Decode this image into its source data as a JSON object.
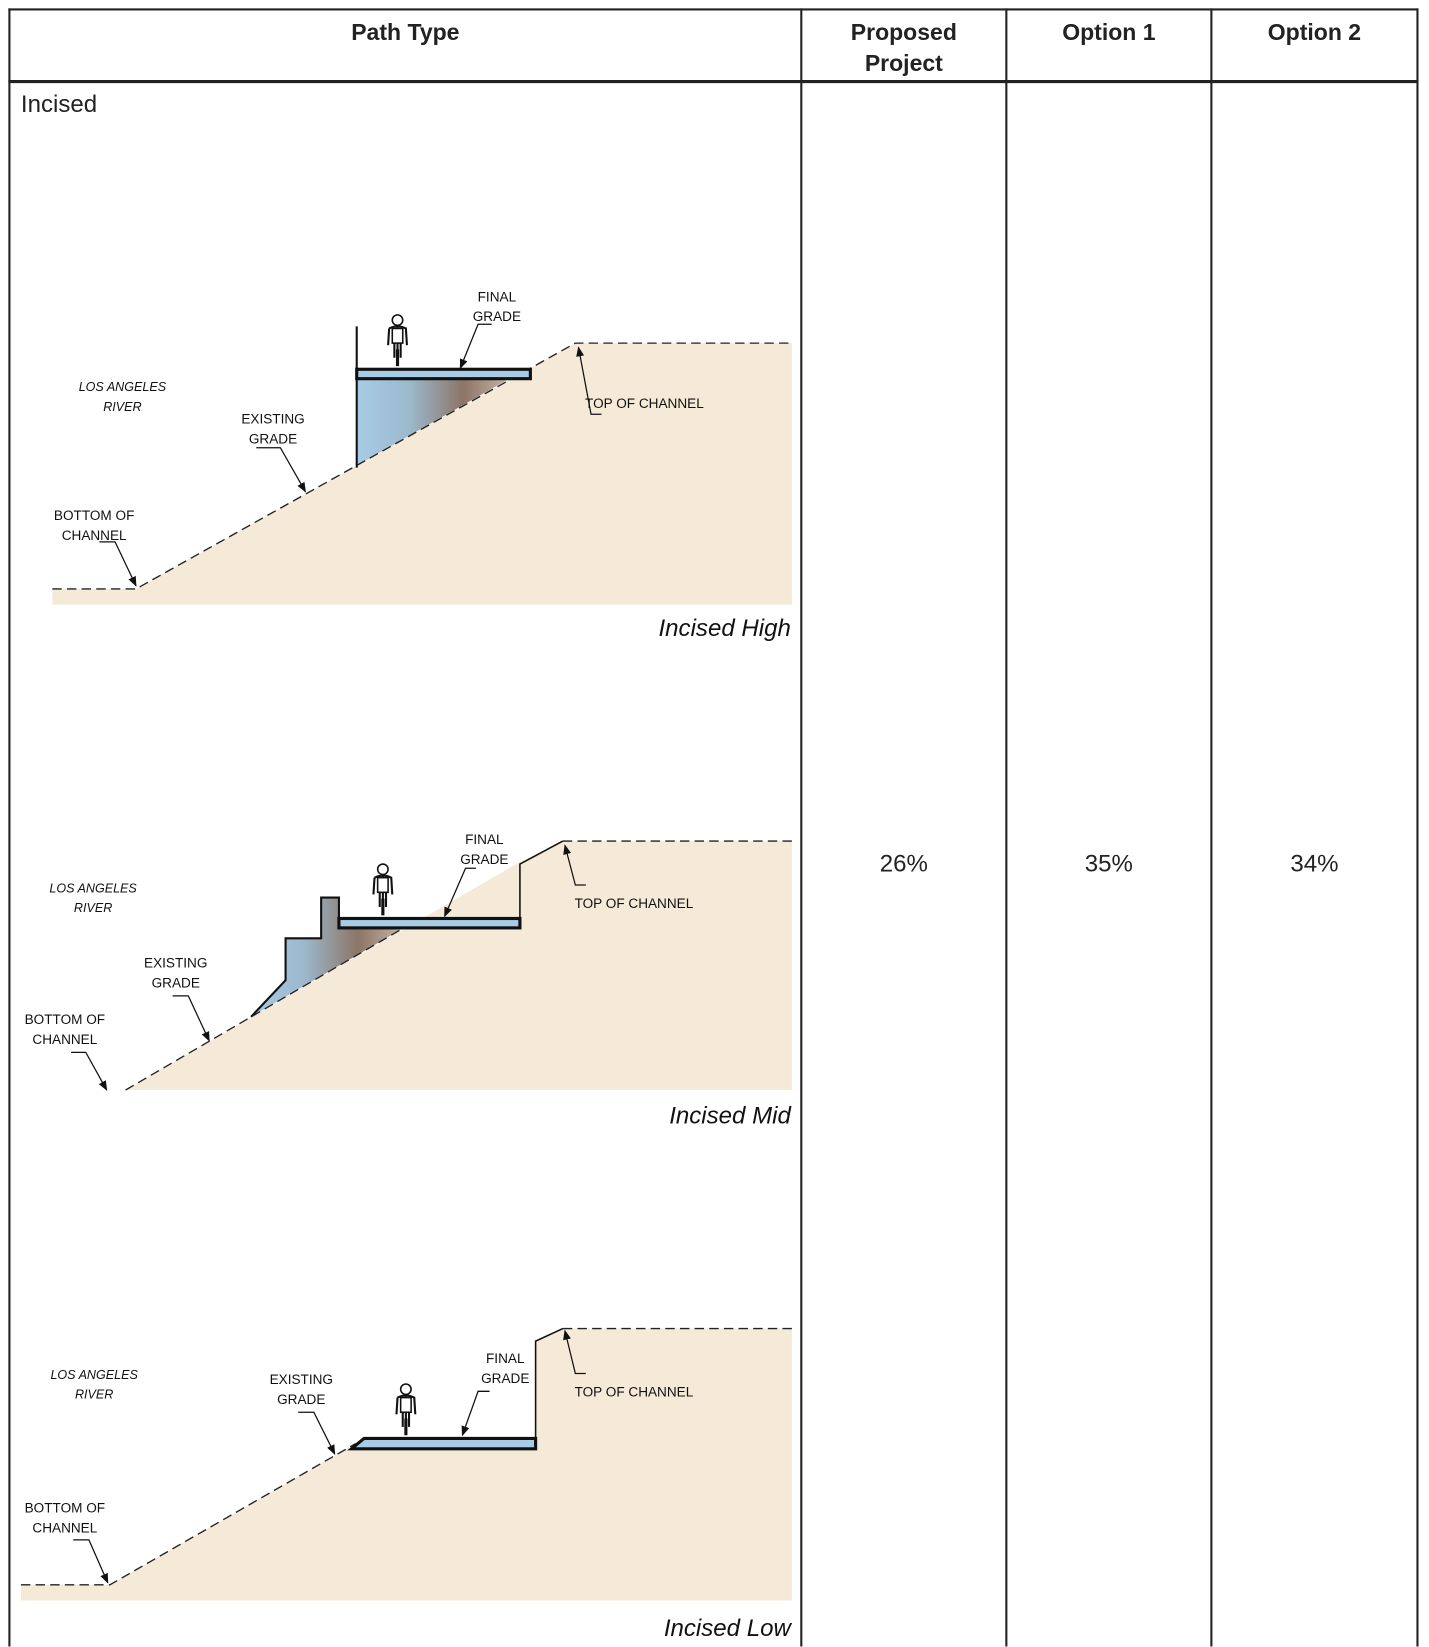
{
  "table": {
    "columns": [
      "Path Type",
      "Proposed Project",
      "Option 1",
      "Option 2"
    ],
    "rows": [
      [
        "Incised",
        "26%",
        "35%",
        "34%"
      ]
    ]
  },
  "diagrams": [
    {
      "caption": "Incised High",
      "river": [
        "LOS ANGELES",
        "RIVER"
      ],
      "existing": [
        "EXISTING",
        "GRADE"
      ],
      "bottom": [
        "BOTTOM OF",
        "CHANNEL"
      ],
      "final": [
        "FINAL",
        "GRADE"
      ],
      "top": [
        "TOP OF CHANNEL"
      ]
    },
    {
      "caption": "Incised Mid",
      "river": [
        "LOS ANGELES",
        "RIVER"
      ],
      "existing": [
        "EXISTING",
        "GRADE"
      ],
      "bottom": [
        "BOTTOM OF",
        "CHANNEL"
      ],
      "final": [
        "FINAL",
        "GRADE"
      ],
      "top": [
        "TOP OF CHANNEL"
      ]
    },
    {
      "caption": "Incised Low",
      "river": [
        "LOS ANGELES",
        "RIVER"
      ],
      "existing": [
        "EXISTING",
        "GRADE"
      ],
      "bottom": [
        "BOTTOM OF",
        "CHANNEL"
      ],
      "final": [
        "FINAL",
        "GRADE"
      ],
      "top": [
        "TOP OF CHANNEL"
      ]
    }
  ]
}
